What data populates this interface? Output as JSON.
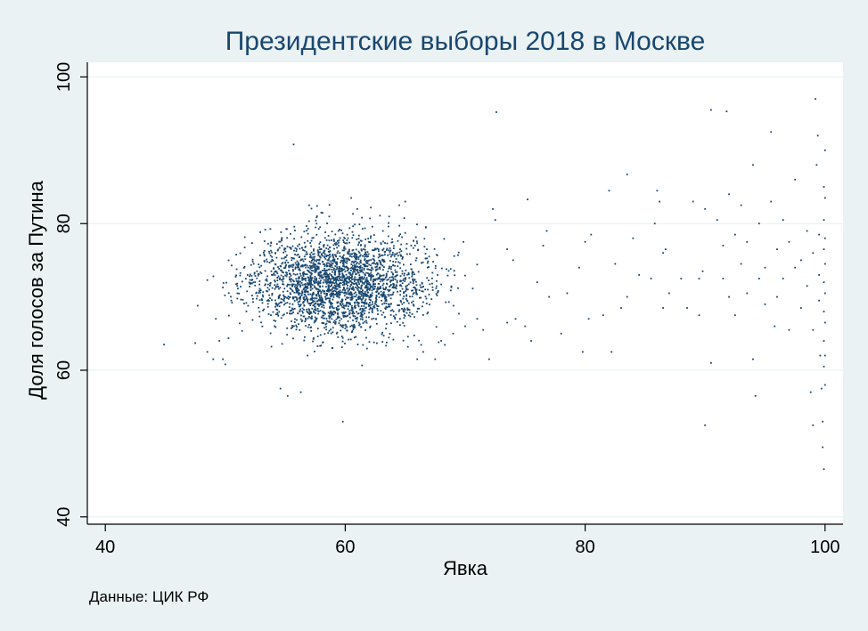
{
  "chart_data": {
    "type": "scatter",
    "title": "Президентские выборы 2018 в Москве",
    "xlabel": "Явка",
    "ylabel": "Доля голосов за Путина",
    "note": "Данные: ЦИК РФ",
    "xlim": [
      38.5,
      101.5
    ],
    "ylim": [
      39,
      102
    ],
    "xticks": [
      40,
      60,
      80,
      100
    ],
    "yticks": [
      40,
      60,
      80,
      100
    ],
    "grid": true,
    "colors": {
      "background": "#eaf2f3",
      "plot_area": "#ffffff",
      "marker": "#1a476f",
      "title": "#1a476f"
    },
    "cluster": {
      "description_of_shape": "dense cloud of polling stations",
      "count": 2600,
      "center": [
        59.5,
        71.8
      ],
      "sd": [
        3.6,
        3.4
      ],
      "x_range": [
        49,
        71
      ],
      "y_range": [
        57,
        85
      ]
    },
    "points": [
      [
        44.9,
        63.5
      ],
      [
        47.5,
        63.7
      ],
      [
        47.7,
        68.8
      ],
      [
        48.5,
        72.3
      ],
      [
        48.5,
        62.5
      ],
      [
        49.0,
        61.5
      ],
      [
        49.8,
        61.5
      ],
      [
        50.0,
        60.8
      ],
      [
        49.5,
        64.0
      ],
      [
        50.5,
        69.5
      ],
      [
        51.0,
        71.5
      ],
      [
        54.6,
        57.5
      ],
      [
        55.7,
        90.8
      ],
      [
        55.2,
        56.5
      ],
      [
        56.3,
        57.0
      ],
      [
        59.8,
        53.0
      ],
      [
        60.5,
        83.5
      ],
      [
        61.0,
        82.0
      ],
      [
        57.0,
        82.5
      ],
      [
        58.0,
        81.5
      ],
      [
        64.5,
        82.5
      ],
      [
        65.0,
        83.0
      ],
      [
        66.0,
        61.5
      ],
      [
        66.5,
        62.5
      ],
      [
        67.5,
        61.5
      ],
      [
        68.0,
        64.0
      ],
      [
        69.0,
        65.0
      ],
      [
        70.0,
        66.0
      ],
      [
        71.0,
        67.0
      ],
      [
        71.5,
        65.5
      ],
      [
        72.0,
        61.5
      ],
      [
        72.6,
        95.2
      ],
      [
        72.3,
        82.0
      ],
      [
        72.5,
        80.5
      ],
      [
        75.2,
        83.3
      ],
      [
        73.5,
        76.5
      ],
      [
        74.0,
        75.0
      ],
      [
        73.5,
        66.5
      ],
      [
        74.2,
        67.0
      ],
      [
        75.0,
        66.0
      ],
      [
        75.5,
        64.0
      ],
      [
        76.0,
        72.0
      ],
      [
        76.5,
        77.0
      ],
      [
        76.8,
        79.0
      ],
      [
        77.0,
        70.0
      ],
      [
        78.0,
        65.0
      ],
      [
        78.5,
        70.5
      ],
      [
        79.5,
        74.0
      ],
      [
        79.8,
        62.5
      ],
      [
        80.0,
        77.5
      ],
      [
        80.3,
        67.0
      ],
      [
        80.5,
        78.5
      ],
      [
        81.5,
        67.5
      ],
      [
        82.0,
        84.5
      ],
      [
        82.5,
        74.5
      ],
      [
        82.2,
        62.5
      ],
      [
        83.0,
        68.5
      ],
      [
        83.5,
        70.0
      ],
      [
        83.5,
        86.7
      ],
      [
        84.0,
        78.0
      ],
      [
        84.5,
        73.0
      ],
      [
        85.5,
        72.5
      ],
      [
        85.8,
        80.0
      ],
      [
        86.0,
        84.5
      ],
      [
        86.2,
        83.0
      ],
      [
        86.5,
        76.0
      ],
      [
        86.5,
        68.5
      ],
      [
        86.7,
        76.5
      ],
      [
        87.0,
        70.5
      ],
      [
        88.0,
        72.5
      ],
      [
        88.5,
        68.5
      ],
      [
        89.0,
        83.0
      ],
      [
        89.5,
        72.5
      ],
      [
        89.5,
        67.5
      ],
      [
        89.8,
        73.5
      ],
      [
        90.0,
        82.0
      ],
      [
        90.0,
        52.5
      ],
      [
        90.5,
        61.0
      ],
      [
        90.5,
        95.5
      ],
      [
        91.0,
        80.5
      ],
      [
        91.5,
        77.0
      ],
      [
        91.5,
        72.5
      ],
      [
        91.8,
        95.3
      ],
      [
        92.0,
        84.0
      ],
      [
        92.0,
        70.0
      ],
      [
        92.5,
        78.5
      ],
      [
        92.5,
        67.5
      ],
      [
        93.0,
        82.5
      ],
      [
        93.0,
        74.5
      ],
      [
        93.5,
        77.5
      ],
      [
        93.5,
        70.5
      ],
      [
        94.0,
        88.0
      ],
      [
        94.0,
        61.5
      ],
      [
        94.2,
        56.5
      ],
      [
        94.5,
        72.5
      ],
      [
        94.5,
        80.0
      ],
      [
        95.0,
        74.0
      ],
      [
        95.0,
        69.0
      ],
      [
        95.5,
        83.0
      ],
      [
        95.5,
        92.5
      ],
      [
        95.8,
        66.0
      ],
      [
        96.0,
        76.5
      ],
      [
        96.0,
        70.0
      ],
      [
        96.5,
        80.5
      ],
      [
        96.5,
        72.5
      ],
      [
        97.0,
        77.5
      ],
      [
        97.0,
        65.5
      ],
      [
        97.5,
        74.0
      ],
      [
        97.5,
        86.0
      ],
      [
        98.0,
        75.0
      ],
      [
        98.0,
        68.5
      ],
      [
        98.5,
        79.0
      ],
      [
        98.5,
        71.5
      ],
      [
        99.0,
        76.0
      ],
      [
        99.0,
        65.5
      ],
      [
        99.2,
        97.0
      ],
      [
        99.3,
        88.0
      ],
      [
        99.4,
        92.0
      ],
      [
        99.5,
        78.5
      ],
      [
        99.5,
        73.0
      ],
      [
        99.5,
        69.5
      ],
      [
        99.6,
        62.0
      ],
      [
        99.7,
        57.5
      ],
      [
        99.8,
        53.0
      ],
      [
        99.8,
        49.5
      ],
      [
        99.9,
        46.5
      ],
      [
        99.9,
        85.0
      ],
      [
        99.9,
        80.5
      ],
      [
        99.9,
        76.5
      ],
      [
        99.9,
        72.0
      ],
      [
        99.9,
        68.0
      ],
      [
        99.9,
        64.0
      ],
      [
        99.9,
        60.5
      ],
      [
        100.0,
        90.0
      ],
      [
        100.0,
        83.5
      ],
      [
        100.0,
        78.0
      ],
      [
        100.0,
        74.5
      ],
      [
        100.0,
        70.5
      ],
      [
        100.0,
        66.5
      ],
      [
        100.0,
        62.0
      ],
      [
        100.0,
        58.0
      ],
      [
        99.0,
        52.5
      ],
      [
        98.8,
        57.0
      ]
    ]
  }
}
